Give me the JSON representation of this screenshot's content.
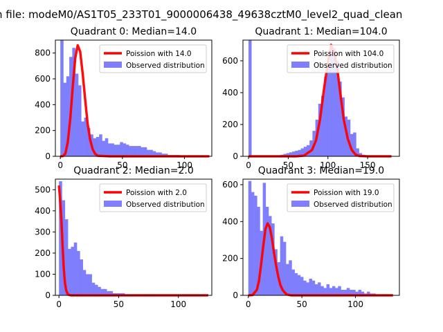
{
  "suptitle": "n file: modeM0/AS1T05_233T01_9000006438_49638cztM0_level2_quad_clean",
  "colors": {
    "hist": "#7f7ffd",
    "poisson": "#ff0000",
    "axis": "#000000"
  },
  "chart_data": [
    {
      "type": "bar",
      "title": "Quadrant 0: Median=14.0",
      "xlim": [
        -4,
        122
      ],
      "ylim": [
        0,
        900
      ],
      "xticks": [
        0,
        50,
        100
      ],
      "yticks": [
        0,
        200,
        400,
        600,
        800
      ],
      "bin_start": 0,
      "bin_width": 2.4,
      "hist": [
        900,
        570,
        620,
        770,
        840,
        640,
        550,
        270,
        300,
        220,
        170,
        140,
        150,
        170,
        120,
        140,
        100,
        100,
        90,
        90,
        110,
        100,
        90,
        80,
        80,
        80,
        80,
        70,
        70,
        50,
        50,
        40,
        30,
        30,
        20,
        20,
        10,
        10,
        10,
        10,
        5,
        5,
        5,
        5,
        5,
        5,
        5,
        5,
        5,
        5
      ],
      "poisson_mean": 14,
      "poisson_x": [
        0,
        2,
        4,
        6,
        8,
        10,
        12,
        14,
        16,
        18,
        20,
        22,
        24,
        26,
        28,
        30,
        40,
        60,
        80,
        100,
        120
      ],
      "poisson_y": [
        0,
        2,
        20,
        110,
        290,
        540,
        760,
        860,
        810,
        640,
        440,
        250,
        130,
        55,
        20,
        5,
        0,
        0,
        0,
        0,
        0
      ],
      "legend": [
        "Poission with 14.0",
        "Observed distribution"
      ]
    },
    {
      "type": "bar",
      "title": "Quadrant 1: Median=104.0",
      "xlim": [
        -7,
        190
      ],
      "ylim": [
        0,
        730
      ],
      "xticks": [
        0,
        50,
        100,
        150
      ],
      "yticks": [
        0,
        200,
        400,
        600
      ],
      "bin_start": 0,
      "bin_width": 3.66,
      "hist": [
        730,
        0,
        0,
        0,
        0,
        0,
        0,
        0,
        0,
        0,
        5,
        10,
        15,
        20,
        25,
        30,
        35,
        40,
        50,
        60,
        70,
        100,
        160,
        230,
        330,
        380,
        500,
        570,
        660,
        680,
        600,
        470,
        370,
        250,
        230,
        140,
        150,
        50,
        20,
        10,
        5,
        0,
        0,
        0,
        0,
        0,
        0,
        0,
        0,
        0
      ],
      "poisson_mean": 104,
      "poisson_x": [
        0,
        60,
        70,
        80,
        85,
        90,
        95,
        100,
        104,
        108,
        112,
        116,
        120,
        125,
        130,
        135,
        140,
        150,
        160,
        180
      ],
      "poisson_y": [
        0,
        0,
        5,
        40,
        100,
        230,
        420,
        590,
        700,
        650,
        540,
        380,
        230,
        110,
        40,
        10,
        2,
        0,
        0,
        0
      ],
      "legend": [
        "Poission with 104.0",
        "Observed distribution"
      ]
    },
    {
      "type": "bar",
      "title": "Quadrant 2: Median=2.0",
      "xlim": [
        -3,
        128
      ],
      "ylim": [
        0,
        550
      ],
      "xticks": [
        0,
        50,
        100
      ],
      "yticks": [
        0,
        100,
        200,
        300,
        400,
        500
      ],
      "bin_start": 0,
      "bin_width": 2.5,
      "hist": [
        540,
        450,
        360,
        220,
        230,
        250,
        210,
        170,
        120,
        100,
        100,
        60,
        50,
        40,
        30,
        30,
        20,
        20,
        10,
        10,
        10,
        10,
        5,
        5,
        5,
        5,
        5,
        5,
        5,
        5,
        5,
        5,
        5,
        5,
        5,
        5,
        5,
        5,
        5,
        5,
        5,
        5,
        5,
        5,
        5,
        5,
        5,
        5,
        5,
        5
      ],
      "poisson_mean": 2,
      "poisson_x": [
        0,
        1,
        2,
        3,
        4,
        5,
        6,
        7,
        8,
        10,
        20,
        50,
        100,
        125
      ],
      "poisson_y": [
        520,
        450,
        360,
        240,
        130,
        60,
        25,
        10,
        3,
        0,
        0,
        0,
        0,
        0
      ],
      "legend": [
        "Poission with 2.0",
        "Observed distribution"
      ]
    },
    {
      "type": "bar",
      "title": "Quadrant 3: Median=19.0",
      "xlim": [
        -5,
        141
      ],
      "ylim": [
        0,
        630
      ],
      "xticks": [
        0,
        50,
        100
      ],
      "yticks": [
        0,
        200,
        400,
        600
      ],
      "bin_start": 0,
      "bin_width": 2.7,
      "hist": [
        620,
        560,
        540,
        480,
        350,
        610,
        480,
        430,
        390,
        250,
        180,
        320,
        290,
        170,
        190,
        140,
        120,
        110,
        100,
        80,
        70,
        90,
        80,
        60,
        70,
        50,
        40,
        60,
        40,
        50,
        40,
        50,
        30,
        30,
        40,
        30,
        30,
        20,
        30,
        20,
        10,
        20,
        10,
        10,
        5,
        5,
        5,
        5,
        5,
        5
      ],
      "poisson_mean": 19,
      "poisson_x": [
        0,
        4,
        8,
        10,
        12,
        14,
        16,
        18,
        20,
        22,
        24,
        26,
        28,
        30,
        32,
        34,
        36,
        40,
        60,
        90,
        135
      ],
      "poisson_y": [
        0,
        2,
        30,
        80,
        170,
        270,
        360,
        390,
        370,
        310,
        230,
        160,
        100,
        55,
        30,
        15,
        5,
        0,
        0,
        0,
        0
      ],
      "legend": [
        "Poission with 19.0",
        "Observed distribution"
      ]
    }
  ]
}
